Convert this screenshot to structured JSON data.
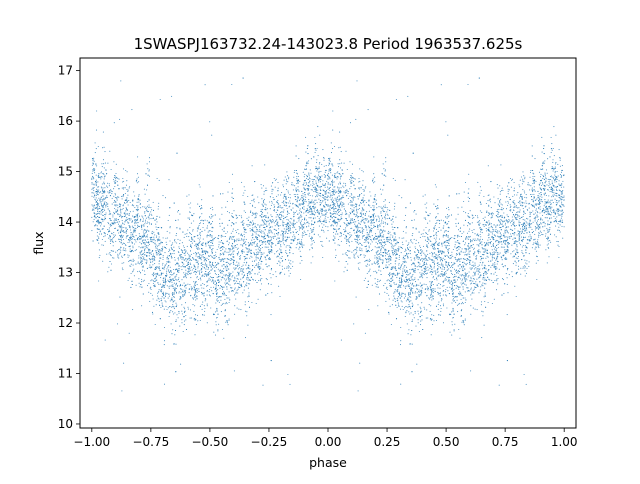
{
  "chart_data": {
    "type": "scatter",
    "title": "1SWASPJ163732.24-143023.8 Period 1963537.625s",
    "xlabel": "phase",
    "ylabel": "flux",
    "xlim": [
      -1.05,
      1.05
    ],
    "ylim": [
      9.92,
      17.25
    ],
    "xticks": [
      -1.0,
      -0.75,
      -0.5,
      -0.25,
      0.0,
      0.25,
      0.5,
      0.75,
      1.0
    ],
    "xtick_labels": [
      "−1.00",
      "−0.75",
      "−0.50",
      "−0.25",
      "0.00",
      "0.25",
      "0.50",
      "0.75",
      "1.00"
    ],
    "yticks": [
      10,
      11,
      12,
      13,
      14,
      15,
      16,
      17
    ],
    "ytick_labels": [
      "10",
      "11",
      "12",
      "13",
      "14",
      "15",
      "16",
      "17"
    ],
    "grid": false,
    "marker_color": "#1f77b4",
    "phase_profile": {
      "description_points_phase": [
        0.0,
        0.05,
        0.1,
        0.15,
        0.2,
        0.25,
        0.3,
        0.35,
        0.4,
        0.45,
        0.5,
        0.55,
        0.6,
        0.65,
        0.7,
        0.75,
        0.8,
        0.85,
        0.9,
        0.95,
        1.0
      ],
      "median_flux": [
        14.5,
        14.3,
        14.1,
        13.9,
        13.8,
        13.5,
        13.1,
        12.8,
        13.1,
        13.2,
        13.2,
        13.0,
        13.3,
        13.4,
        13.6,
        13.8,
        13.9,
        14.0,
        14.3,
        14.6,
        14.4
      ],
      "spread": [
        0.45,
        0.45,
        0.45,
        0.45,
        0.5,
        0.5,
        0.5,
        0.55,
        0.5,
        0.5,
        0.5,
        0.55,
        0.55,
        0.5,
        0.45,
        0.45,
        0.45,
        0.45,
        0.45,
        0.45,
        0.45
      ]
    },
    "n_points": 9000,
    "outlier_range": [
      10.3,
      16.9
    ]
  }
}
